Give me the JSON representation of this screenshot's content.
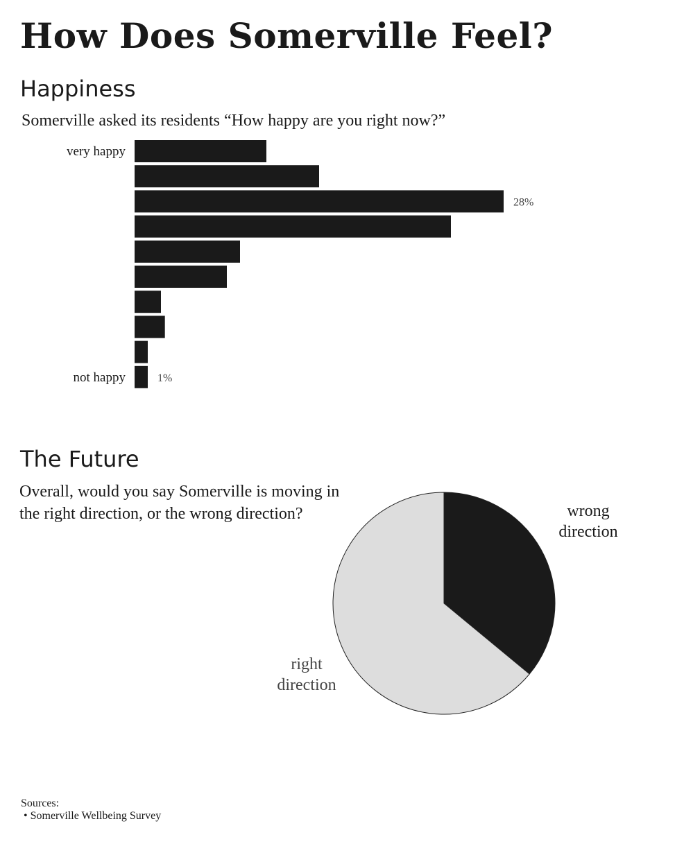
{
  "title": "How Does Somerville Feel?",
  "happiness": {
    "heading": "Happiness",
    "question": "Somerville asked its residents “How happy are you right now?”"
  },
  "future": {
    "heading": "The Future",
    "question": "Overall, would you say Somerville is moving in the right direction, or the wrong direction?"
  },
  "sources": {
    "label": "Sources:",
    "items": [
      "Somerville Wellbeing Survey"
    ]
  },
  "colors": {
    "dark": "#1a1a1a",
    "light": "#dddddd",
    "outline": "#222222",
    "label_muted": "#444444"
  },
  "chart_data": [
    {
      "type": "bar",
      "orientation": "horizontal",
      "categories": [
        "very happy",
        "",
        "",
        "",
        "",
        "",
        "",
        "",
        "",
        "not happy"
      ],
      "values": [
        10,
        14,
        28,
        24,
        8,
        7,
        2,
        2.3,
        1,
        1
      ],
      "value_labels": [
        "",
        "",
        "28%",
        "",
        "",
        "",
        "",
        "",
        "",
        "1%"
      ],
      "unit": "%",
      "xlim": [
        0,
        28
      ],
      "grid": false
    },
    {
      "type": "pie",
      "slices": [
        {
          "label": "wrong direction",
          "value": 36,
          "color": "#1a1a1a"
        },
        {
          "label": "right direction",
          "value": 64,
          "color": "#dddddd"
        }
      ]
    }
  ]
}
